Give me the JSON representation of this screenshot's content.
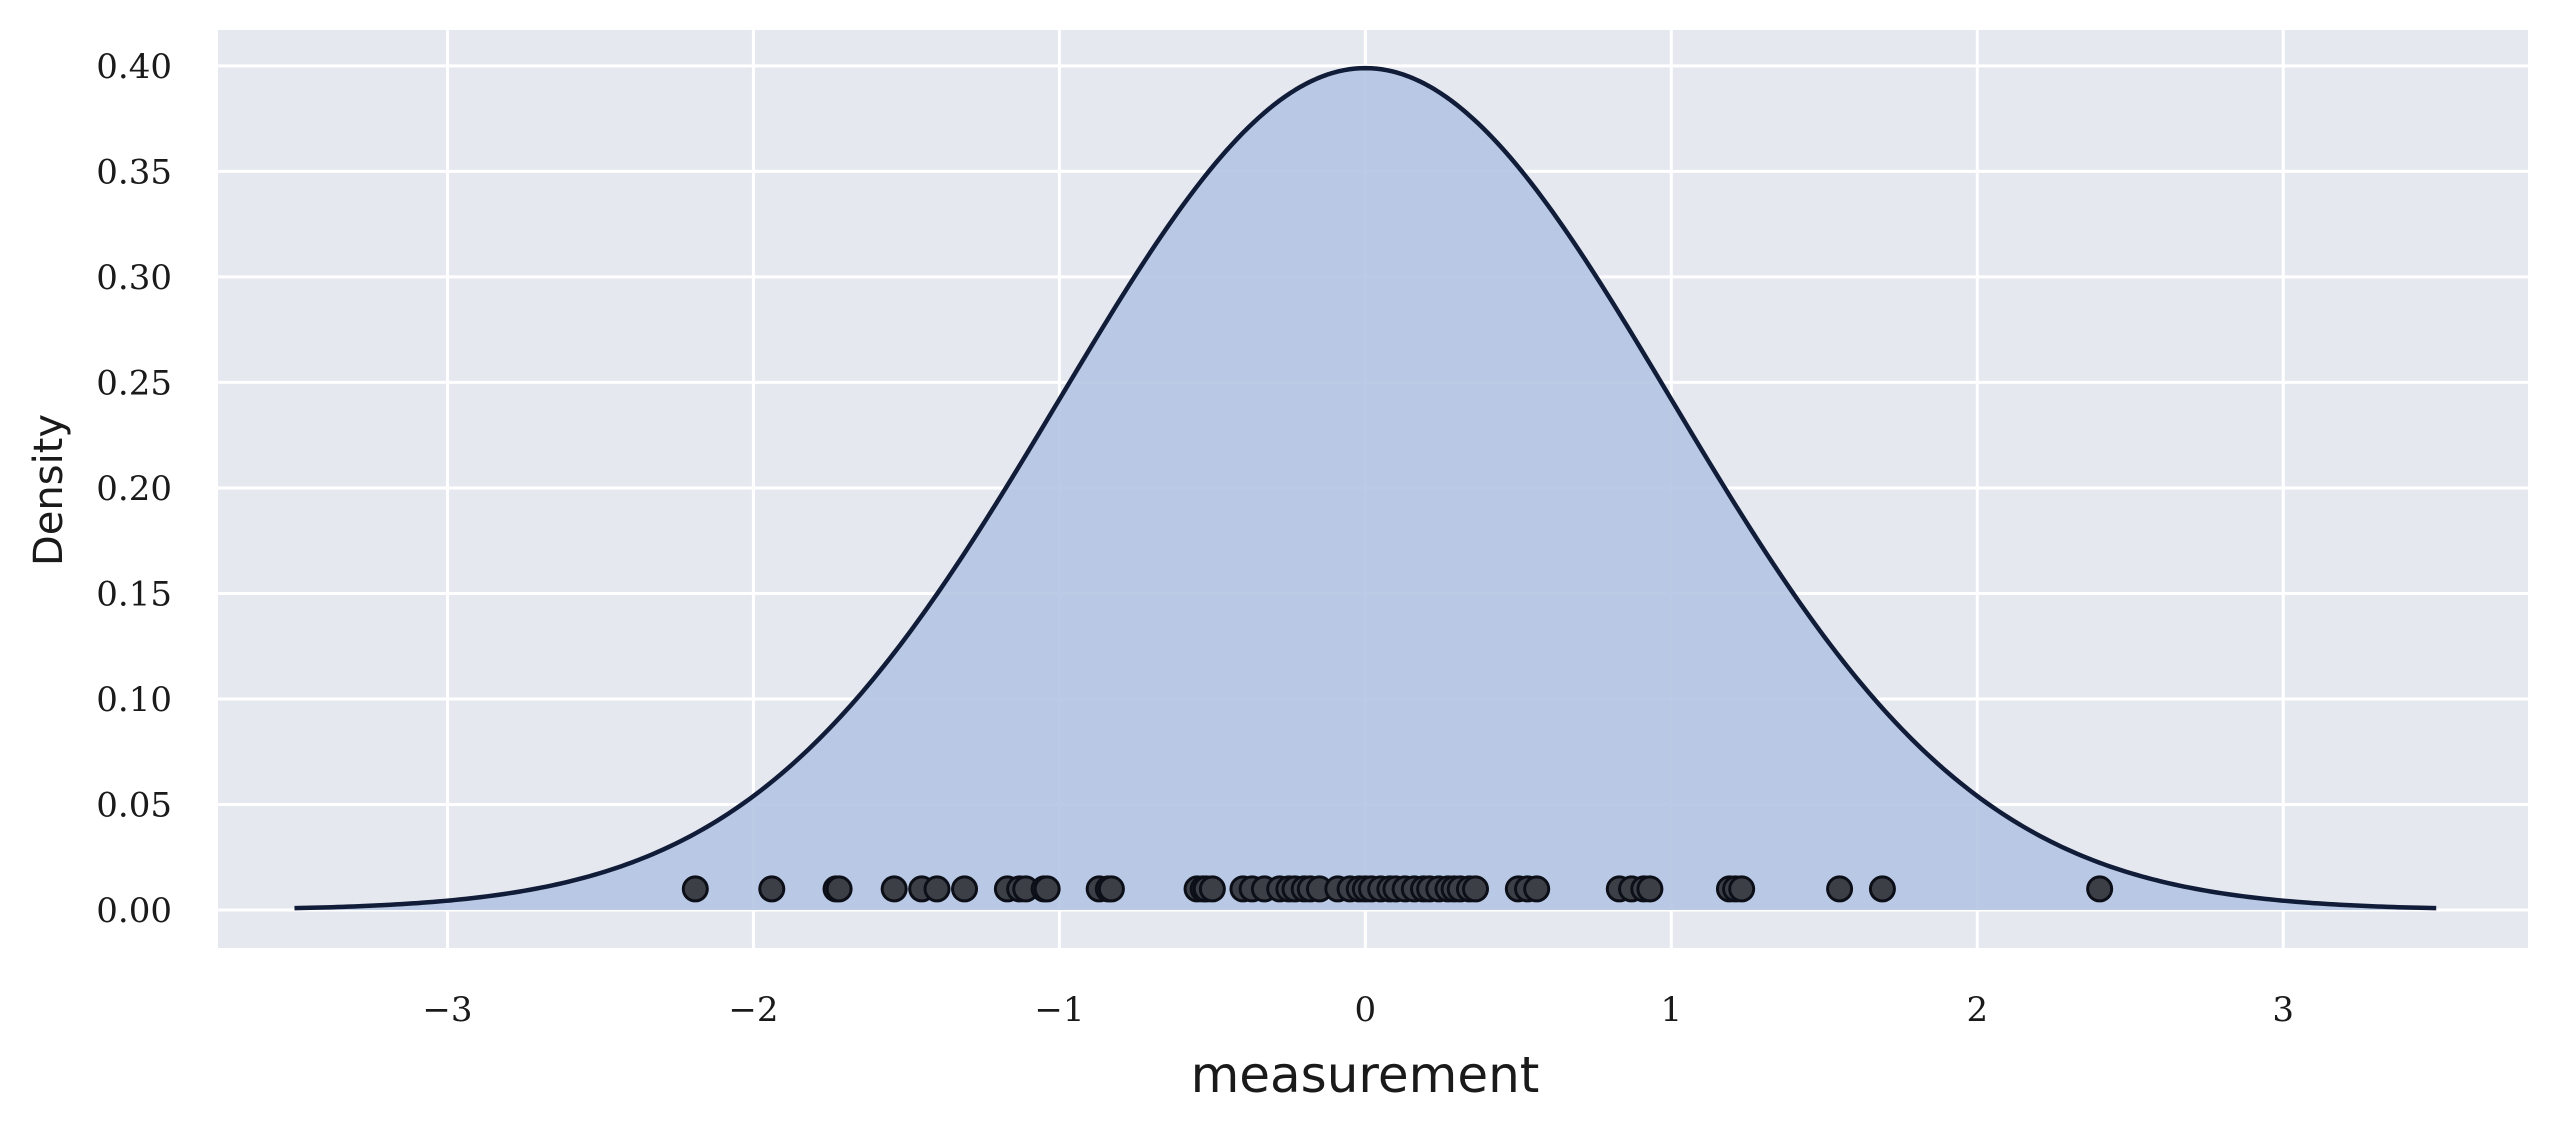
{
  "chart_data": {
    "type": "area",
    "title": "",
    "xlabel": "measurement",
    "ylabel": "Density",
    "xlim": [
      -3.75,
      3.8
    ],
    "ylim": [
      -0.018,
      0.417
    ],
    "x_ticks": [
      -3,
      -2,
      -1,
      0,
      1,
      2,
      3
    ],
    "x_tick_labels": [
      "−3",
      "−2",
      "−1",
      "0",
      "1",
      "2",
      "3"
    ],
    "y_ticks": [
      0.0,
      0.05,
      0.1,
      0.15,
      0.2,
      0.25,
      0.3,
      0.35,
      0.4
    ],
    "y_tick_labels": [
      "0.00",
      "0.05",
      "0.10",
      "0.15",
      "0.20",
      "0.25",
      "0.30",
      "0.35",
      "0.40"
    ],
    "grid": true,
    "background": "#e6e8f0",
    "series": [
      {
        "kind": "density_curve",
        "distribution": "normal",
        "mean": 0,
        "std": 1,
        "x_range": [
          -3.5,
          3.5
        ],
        "fill_color": "#b4c4e2",
        "line_color": "#101c38"
      },
      {
        "kind": "points",
        "y": 0.01,
        "marker_color": "#3c4046",
        "edge_color": "#0c0f17",
        "x": [
          -2.19,
          -1.94,
          -1.73,
          -1.72,
          -1.54,
          -1.45,
          -1.4,
          -1.31,
          -1.17,
          -1.13,
          -1.11,
          -1.05,
          -1.04,
          -0.87,
          -0.84,
          -0.83,
          -0.55,
          -0.53,
          -0.52,
          -0.5,
          -0.4,
          -0.37,
          -0.33,
          -0.28,
          -0.25,
          -0.23,
          -0.2,
          -0.18,
          -0.15,
          -0.09,
          -0.05,
          -0.02,
          0.0,
          0.02,
          0.05,
          0.08,
          0.1,
          0.13,
          0.16,
          0.19,
          0.21,
          0.24,
          0.27,
          0.29,
          0.31,
          0.34,
          0.36,
          0.5,
          0.53,
          0.56,
          0.83,
          0.87,
          0.91,
          0.93,
          1.19,
          1.21,
          1.23,
          1.55,
          1.69,
          2.4
        ]
      }
    ]
  }
}
